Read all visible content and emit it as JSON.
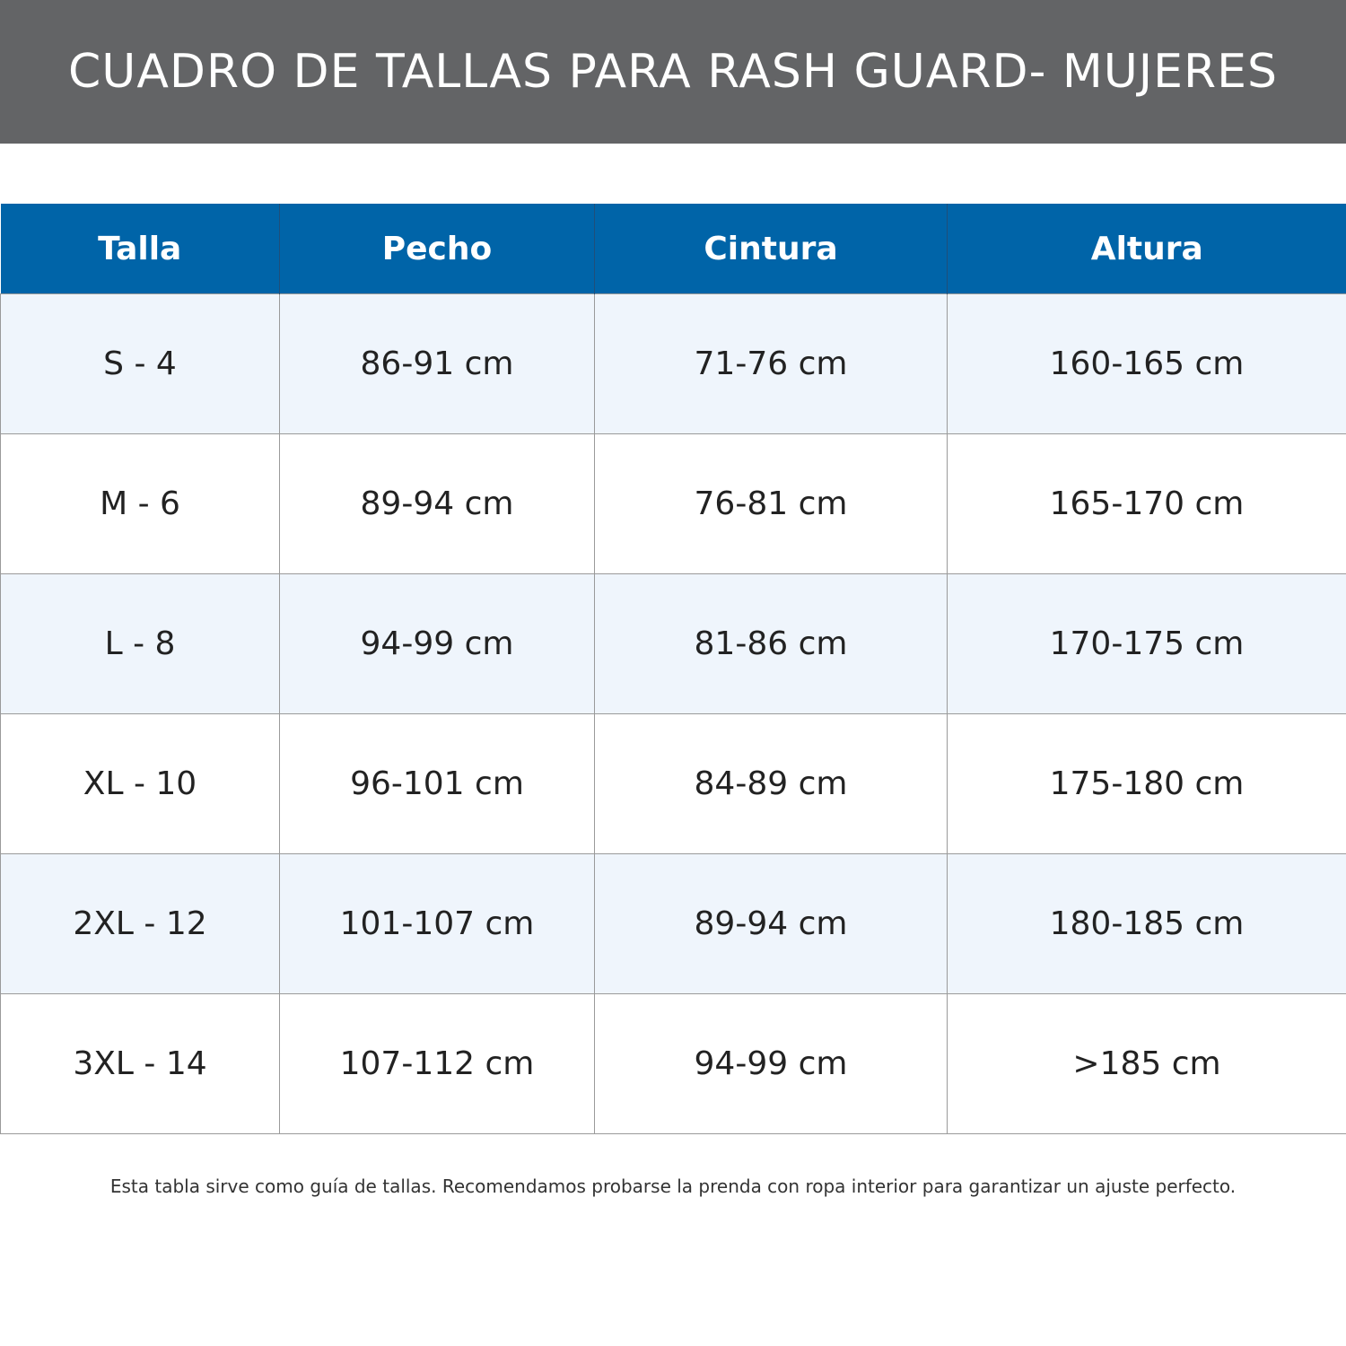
{
  "title": "CUADRO DE TALLAS PARA RASH GUARD- MUJERES",
  "colors": {
    "banner": "#636466",
    "header": "#0064a8",
    "alt_row": "#eff5fc"
  },
  "table": {
    "headers": [
      "Talla",
      "Pecho",
      "Cintura",
      "Altura"
    ],
    "rows": [
      [
        "S - 4",
        "86-91 cm",
        "71-76 cm",
        "160-165 cm"
      ],
      [
        "M - 6",
        "89-94 cm",
        "76-81 cm",
        "165-170 cm"
      ],
      [
        "L - 8",
        "94-99 cm",
        "81-86 cm",
        "170-175 cm"
      ],
      [
        "XL - 10",
        "96-101 cm",
        "84-89 cm",
        "175-180 cm"
      ],
      [
        "2XL - 12",
        "101-107 cm",
        "89-94 cm",
        "180-185 cm"
      ],
      [
        "3XL - 14",
        "107-112 cm",
        "94-99 cm",
        ">185 cm"
      ]
    ]
  },
  "footer": "Esta tabla sirve como guía de tallas. Recomendamos probarse la prenda con ropa interior para garantizar un ajuste perfecto."
}
